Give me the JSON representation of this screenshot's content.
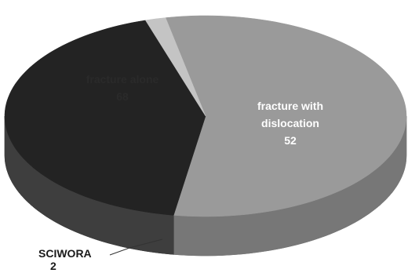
{
  "chart_data": {
    "type": "pie",
    "style": "3d",
    "title": "",
    "slices": [
      {
        "label": "fracture alone",
        "value": 68,
        "color": "#9a9a9a",
        "side_color": "#777777",
        "text_color": "#2a2a2a"
      },
      {
        "label": "fracture with dislocation",
        "value": 52,
        "color": "#232323",
        "side_color": "#3e3e3e",
        "text_color": "#ffffff"
      },
      {
        "label": "SCIWORA",
        "value": 2,
        "color": "#c4c4c4",
        "side_color": "#8c8c8c",
        "text_color": "#1a1a1a"
      }
    ]
  }
}
